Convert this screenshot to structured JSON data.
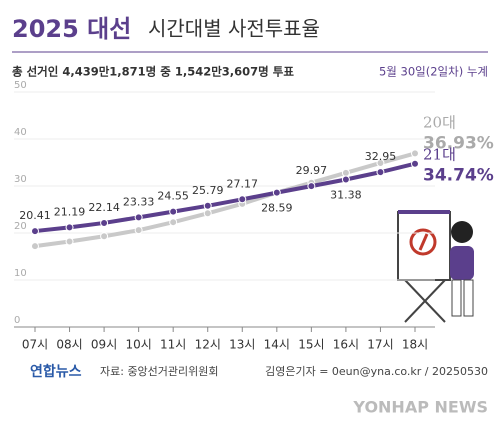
{
  "chart_data": {
    "type": "line",
    "title": "2025 대선",
    "subtitle": "시간대별 사전투표율",
    "note": "총 선거인 4,439만1,871명 중 1,542만3,607명 투표",
    "date_note": "5월 30일(2일차) 누계",
    "categories": [
      "07시",
      "08시",
      "09시",
      "10시",
      "11시",
      "12시",
      "13시",
      "14시",
      "15시",
      "16시",
      "17시",
      "18시"
    ],
    "series": [
      {
        "name": "21대",
        "color": "#5b3f8c",
        "values": [
          20.41,
          21.19,
          22.14,
          23.33,
          24.55,
          25.79,
          27.17,
          28.59,
          29.97,
          31.38,
          32.95,
          34.74
        ],
        "value_labels": [
          "20.41",
          "21.19",
          "22.14",
          "23.33",
          "24.55",
          "25.79",
          "27.17",
          "28.59",
          "29.97",
          "31.38",
          "32.95",
          "34.74%"
        ]
      },
      {
        "name": "20대",
        "color": "#c9c9c9",
        "values": [
          17.2,
          18.2,
          19.3,
          20.6,
          22.3,
          24.2,
          26.2,
          28.6,
          30.7,
          32.8,
          34.9,
          36.93
        ],
        "value_labels": [
          null,
          null,
          null,
          null,
          null,
          null,
          null,
          null,
          null,
          null,
          null,
          "36.93%"
        ]
      }
    ],
    "ylim": [
      0,
      50
    ],
    "yticks": [
      0,
      10,
      20,
      30,
      40,
      50
    ],
    "grid": true,
    "source": "자료: 중앙선거관리위원회",
    "brand": "연합뉴스",
    "credit": "김영은기자 = 0eun@yna.co.kr / 20250530",
    "watermark": "YONHAP NEWS"
  }
}
